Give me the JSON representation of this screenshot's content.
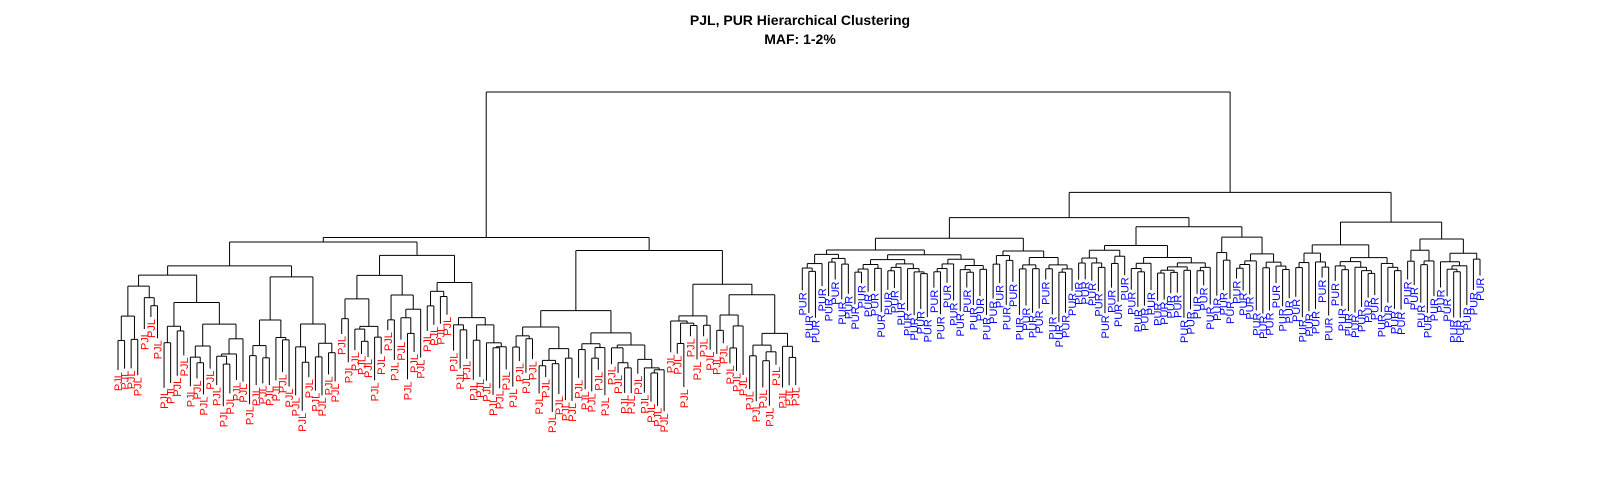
{
  "chart_data": {
    "type": "dendrogram",
    "title": "PJL, PUR Hierarchical Clustering",
    "subtitle": "MAF: 1-2%",
    "groups": [
      {
        "name": "PJL",
        "color": "#ff0000",
        "count": 104
      },
      {
        "name": "PUR",
        "color": "#0000ff",
        "count": 104
      }
    ],
    "axes": "none",
    "grid": false,
    "legend": "none"
  }
}
